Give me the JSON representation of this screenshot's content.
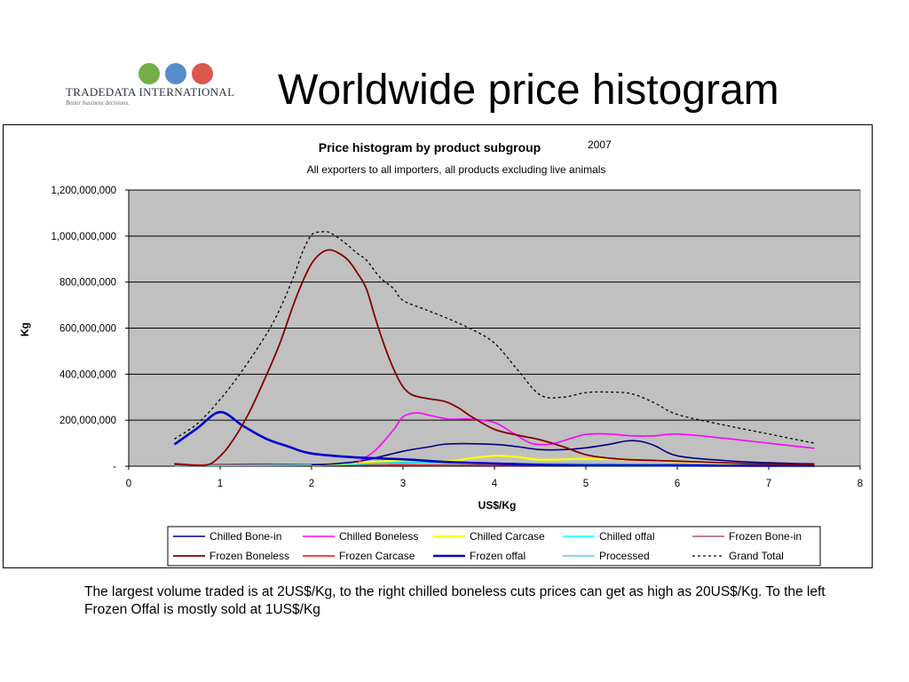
{
  "slide": {
    "title": "Worldwide price histogram",
    "caption": "The largest volume traded is at 2US$/Kg, to the right chilled boneless cuts prices can get as high as 20US$/Kg. To the left Frozen Offal is mostly sold at 1US$/Kg"
  },
  "logo": {
    "name": "TRADEDATA INTERNATIONAL",
    "tagline": "Better business decisions.",
    "globe_colors": [
      "#5aa02c",
      "#3a78c2",
      "#d63a2f"
    ]
  },
  "chart_data": {
    "type": "line",
    "title": "Price histogram by product subgroup",
    "year": "2007",
    "subtitle": "All exporters to all importers, all products excluding live animals",
    "xlabel": "US$/Kg",
    "ylabel": "Kg",
    "xlim": [
      0,
      8
    ],
    "ylim": [
      0,
      1200000000
    ],
    "x_ticks": [
      "0",
      "1",
      "2",
      "3",
      "4",
      "5",
      "6",
      "7",
      "8"
    ],
    "y_ticks": [
      "-",
      "200,000,000",
      "400,000,000",
      "600,000,000",
      "800,000,000",
      "1,000,000,000",
      "1,200,000,000"
    ],
    "y_tick_values": [
      0,
      200000000,
      400000000,
      600000000,
      800000000,
      1000000000,
      1200000000
    ],
    "plot_background": "#c0c0c0",
    "grid": true,
    "legend_position": "bottom",
    "series": [
      {
        "name": "Chilled Bone-in",
        "color": "#000080",
        "width": 1.6,
        "dash": "",
        "points": [
          [
            2,
            5000000
          ],
          [
            2.5,
            20000000
          ],
          [
            3,
            65000000
          ],
          [
            3.3,
            85000000
          ],
          [
            3.5,
            97000000
          ],
          [
            4,
            95000000
          ],
          [
            4.25,
            85000000
          ],
          [
            4.5,
            72000000
          ],
          [
            4.75,
            72000000
          ],
          [
            5,
            80000000
          ],
          [
            5.25,
            95000000
          ],
          [
            5.45,
            110000000
          ],
          [
            5.6,
            108000000
          ],
          [
            5.75,
            90000000
          ],
          [
            6,
            45000000
          ],
          [
            6.5,
            25000000
          ],
          [
            7,
            15000000
          ],
          [
            7.5,
            10000000
          ]
        ]
      },
      {
        "name": "Chilled Boneless",
        "color": "#ff00ff",
        "width": 1.6,
        "dash": "",
        "points": [
          [
            2.5,
            15000000
          ],
          [
            2.7,
            70000000
          ],
          [
            2.9,
            160000000
          ],
          [
            3,
            215000000
          ],
          [
            3.15,
            232000000
          ],
          [
            3.3,
            220000000
          ],
          [
            3.5,
            205000000
          ],
          [
            3.75,
            205000000
          ],
          [
            4,
            190000000
          ],
          [
            4.2,
            145000000
          ],
          [
            4.4,
            100000000
          ],
          [
            4.6,
            95000000
          ],
          [
            4.75,
            110000000
          ],
          [
            5,
            138000000
          ],
          [
            5.25,
            140000000
          ],
          [
            5.5,
            132000000
          ],
          [
            5.75,
            132000000
          ],
          [
            6,
            140000000
          ],
          [
            6.5,
            122000000
          ],
          [
            7,
            100000000
          ],
          [
            7.5,
            78000000
          ]
        ]
      },
      {
        "name": "Chilled Carcase",
        "color": "#ffff00",
        "width": 2.2,
        "dash": "",
        "points": [
          [
            2,
            3000000
          ],
          [
            2.5,
            15000000
          ],
          [
            3,
            25000000
          ],
          [
            3.5,
            22000000
          ],
          [
            3.75,
            35000000
          ],
          [
            4,
            45000000
          ],
          [
            4.25,
            40000000
          ],
          [
            4.5,
            28000000
          ],
          [
            5,
            32000000
          ],
          [
            5.5,
            28000000
          ],
          [
            6,
            20000000
          ],
          [
            6.5,
            12000000
          ],
          [
            7,
            8000000
          ],
          [
            7.5,
            5000000
          ]
        ]
      },
      {
        "name": "Chilled offal",
        "color": "#00ffff",
        "width": 1.6,
        "dash": "",
        "points": [
          [
            0.5,
            2000000
          ],
          [
            1,
            3000000
          ],
          [
            2,
            5000000
          ],
          [
            2.5,
            8000000
          ],
          [
            3,
            15000000
          ],
          [
            3.5,
            12000000
          ],
          [
            4,
            10000000
          ],
          [
            4.5,
            8000000
          ],
          [
            5,
            10000000
          ],
          [
            5.5,
            8000000
          ],
          [
            6,
            6000000
          ],
          [
            7,
            4000000
          ],
          [
            7.5,
            3000000
          ]
        ]
      },
      {
        "name": "Frozen Bone-in",
        "color": "#993366",
        "width": 1.2,
        "dash": "",
        "points": [
          [
            0.5,
            3000000
          ],
          [
            1,
            8000000
          ],
          [
            1.5,
            10000000
          ],
          [
            2,
            8000000
          ],
          [
            2.5,
            10000000
          ],
          [
            3,
            12000000
          ],
          [
            3.5,
            15000000
          ],
          [
            4,
            12000000
          ],
          [
            5,
            10000000
          ],
          [
            6,
            8000000
          ],
          [
            7,
            5000000
          ],
          [
            7.5,
            4000000
          ]
        ]
      },
      {
        "name": "Frozen Boneless",
        "color": "#800000",
        "width": 1.8,
        "dash": "",
        "points": [
          [
            0.5,
            8000000
          ],
          [
            0.75,
            3000000
          ],
          [
            0.85,
            5000000
          ],
          [
            0.95,
            25000000
          ],
          [
            1.1,
            90000000
          ],
          [
            1.3,
            220000000
          ],
          [
            1.5,
            390000000
          ],
          [
            1.65,
            530000000
          ],
          [
            1.8,
            700000000
          ],
          [
            1.9,
            800000000
          ],
          [
            2,
            880000000
          ],
          [
            2.1,
            925000000
          ],
          [
            2.2,
            940000000
          ],
          [
            2.3,
            925000000
          ],
          [
            2.4,
            895000000
          ],
          [
            2.5,
            840000000
          ],
          [
            2.6,
            770000000
          ],
          [
            2.7,
            640000000
          ],
          [
            2.8,
            520000000
          ],
          [
            2.9,
            420000000
          ],
          [
            3,
            345000000
          ],
          [
            3.1,
            310000000
          ],
          [
            3.25,
            295000000
          ],
          [
            3.45,
            282000000
          ],
          [
            3.6,
            255000000
          ],
          [
            3.75,
            215000000
          ],
          [
            4,
            160000000
          ],
          [
            4.25,
            135000000
          ],
          [
            4.5,
            115000000
          ],
          [
            4.75,
            85000000
          ],
          [
            5,
            50000000
          ],
          [
            5.25,
            35000000
          ],
          [
            5.5,
            28000000
          ],
          [
            6,
            22000000
          ],
          [
            6.5,
            15000000
          ],
          [
            7,
            10000000
          ],
          [
            7.5,
            8000000
          ]
        ]
      },
      {
        "name": "Frozen Carcase",
        "color": "#ff0000",
        "width": 1.6,
        "dash": "",
        "points": [
          [
            0.5,
            12000000
          ],
          [
            0.75,
            5000000
          ],
          [
            1,
            5000000
          ],
          [
            1.5,
            4000000
          ],
          [
            2,
            5000000
          ],
          [
            3,
            4000000
          ],
          [
            4,
            4000000
          ],
          [
            5,
            3000000
          ],
          [
            6,
            3000000
          ],
          [
            7,
            2000000
          ],
          [
            7.5,
            2000000
          ]
        ]
      },
      {
        "name": "Frozen offal",
        "color": "#0000cc",
        "width": 2.6,
        "dash": "",
        "points": [
          [
            0.5,
            95000000
          ],
          [
            0.75,
            165000000
          ],
          [
            1,
            235000000
          ],
          [
            1.25,
            175000000
          ],
          [
            1.5,
            120000000
          ],
          [
            1.75,
            85000000
          ],
          [
            2,
            55000000
          ],
          [
            2.5,
            38000000
          ],
          [
            3,
            30000000
          ],
          [
            3.5,
            18000000
          ],
          [
            4,
            12000000
          ],
          [
            4.5,
            6000000
          ],
          [
            5,
            4000000
          ],
          [
            6,
            3000000
          ],
          [
            7,
            2000000
          ],
          [
            7.5,
            2000000
          ]
        ]
      },
      {
        "name": "Processed",
        "color": "#33cccc",
        "width": 1.2,
        "dash": "",
        "points": [
          [
            0.5,
            2000000
          ],
          [
            1,
            3000000
          ],
          [
            2,
            5000000
          ],
          [
            2.5,
            10000000
          ],
          [
            3,
            18000000
          ],
          [
            3.5,
            14000000
          ],
          [
            4,
            12000000
          ],
          [
            5,
            10000000
          ],
          [
            6,
            8000000
          ],
          [
            7,
            5000000
          ],
          [
            7.5,
            4000000
          ]
        ]
      },
      {
        "name": "Grand Total",
        "color": "#000000",
        "width": 1.3,
        "dash": "3 3",
        "points": [
          [
            0.5,
            118000000
          ],
          [
            0.75,
            185000000
          ],
          [
            1,
            290000000
          ],
          [
            1.25,
            420000000
          ],
          [
            1.5,
            570000000
          ],
          [
            1.65,
            680000000
          ],
          [
            1.8,
            820000000
          ],
          [
            1.9,
            930000000
          ],
          [
            2,
            1005000000
          ],
          [
            2.1,
            1018000000
          ],
          [
            2.2,
            1015000000
          ],
          [
            2.35,
            975000000
          ],
          [
            2.5,
            925000000
          ],
          [
            2.6,
            895000000
          ],
          [
            2.75,
            820000000
          ],
          [
            2.9,
            770000000
          ],
          [
            3,
            720000000
          ],
          [
            3.25,
            680000000
          ],
          [
            3.5,
            640000000
          ],
          [
            3.75,
            595000000
          ],
          [
            4,
            535000000
          ],
          [
            4.25,
            420000000
          ],
          [
            4.5,
            310000000
          ],
          [
            4.75,
            300000000
          ],
          [
            5,
            320000000
          ],
          [
            5.25,
            322000000
          ],
          [
            5.5,
            315000000
          ],
          [
            5.75,
            275000000
          ],
          [
            6,
            225000000
          ],
          [
            6.5,
            180000000
          ],
          [
            7,
            140000000
          ],
          [
            7.5,
            100000000
          ]
        ]
      }
    ]
  }
}
